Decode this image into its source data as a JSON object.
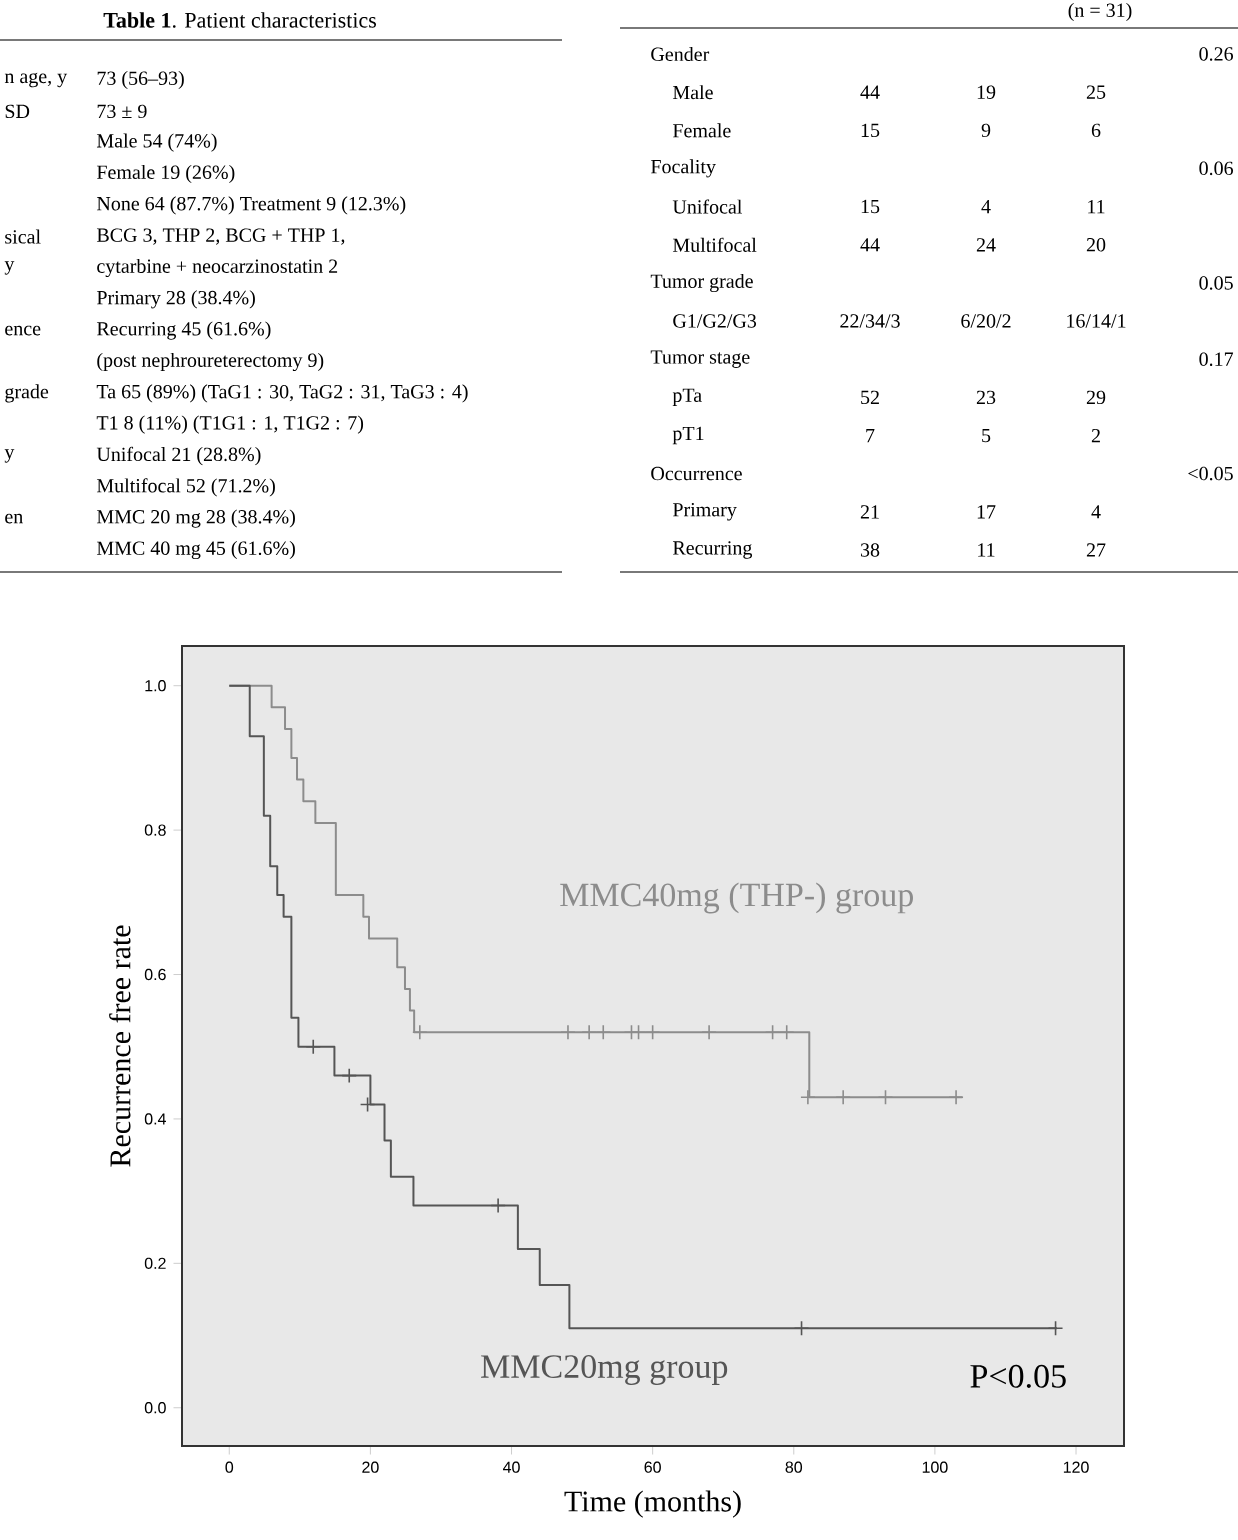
{
  "chart_data": [
    {
      "type": "other",
      "title": "**Table 1**.  Patient characteristics",
      "categories": [
        "n age, y",
        "SD",
        null,
        null,
        null,
        "sical",
        "y",
        null,
        "ence",
        null,
        "grade",
        null,
        "y",
        null,
        "en",
        null
      ],
      "value_labels": [
        "73 (56–93)",
        "73 ± 9",
        "Male 54 (74%)",
        "Female 19 (26%)",
        "None 64 (87.7%)   Treatment 9 (12.3%)",
        "BCG 3, THP 2, BCG + THP 1,",
        "cytarbine + neocarzinostatin 2",
        "Primary 28 (38.4%)",
        "Recurring 45 (61.6%)",
        "(post nephroureterectomy 9)",
        "Ta 65 (89%) (TaG1 : 30, TaG2 : 31, TaG3 : 4)",
        "T1 8 (11%) (T1G1 : 1, T1G2 : 7)",
        "Unifocal 21 (28.8%)",
        "Multifocal 52 (71.2%)",
        "MMC 20 mg 28 (38.4%)",
        "MMC 40 mg 45 (61.6%)"
      ]
    },
    {
      "type": "other",
      "subtitle": "(n = 31)",
      "categories": [
        "Gender",
        "Male",
        "Female",
        "Focality",
        "Unifocal",
        "Multifocal",
        "Tumor grade",
        "G1/G2/G3",
        "Tumor stage",
        "pTa",
        "pT1",
        "Occurrence",
        "Primary",
        "Recurring"
      ],
      "series": [
        {
          "values": [
            null,
            44,
            15,
            null,
            15,
            44,
            null,
            null,
            null,
            52,
            7,
            null,
            21,
            38
          ],
          "value_labels": [
            null,
            "44",
            "15",
            null,
            "15",
            "44",
            null,
            "22/34/3",
            null,
            "52",
            "7",
            null,
            "21",
            "38"
          ]
        },
        {
          "values": [
            null,
            19,
            9,
            null,
            4,
            24,
            null,
            null,
            null,
            23,
            5,
            null,
            17,
            11
          ],
          "value_labels": [
            null,
            "19",
            "9",
            null,
            "4",
            "24",
            null,
            "6/20/2",
            null,
            "23",
            "5",
            null,
            "17",
            "11"
          ]
        },
        {
          "values": [
            null,
            25,
            6,
            null,
            11,
            20,
            null,
            null,
            null,
            29,
            2,
            null,
            4,
            27
          ],
          "value_labels": [
            null,
            "25",
            "6",
            null,
            "11",
            "20",
            null,
            "16/14/1",
            null,
            "29",
            "2",
            null,
            "4",
            "27"
          ]
        },
        {
          "values": [
            0.26,
            null,
            null,
            0.06,
            null,
            null,
            0.05,
            null,
            0.17,
            null,
            null,
            null,
            null,
            null
          ],
          "value_labels": [
            "0.26",
            null,
            null,
            "0.06",
            null,
            null,
            "0.05",
            null,
            "0.17",
            null,
            null,
            "<0.05",
            null,
            null
          ]
        }
      ]
    },
    {
      "type": "step",
      "xlabel": "Time (months)",
      "ylabel": "Recurrence free rate",
      "xlim": [
        -6.7,
        126.8
      ],
      "ylim": [
        -0.053,
        1.055
      ],
      "xticks": [
        0,
        20,
        40,
        60,
        80,
        100,
        120
      ],
      "yticks": [
        {
          "value": 0,
          "label": "0.0"
        },
        {
          "value": 0.2,
          "label": "0.2"
        },
        {
          "value": 0.4,
          "label": "0.4"
        },
        {
          "value": 0.6,
          "label": "0.6"
        },
        {
          "value": 0.8,
          "label": "0.8"
        },
        {
          "value": 1,
          "label": "1.0"
        }
      ],
      "annotations": [
        "P<0.05"
      ],
      "series": [
        {
          "name": "MMC40mg (THP-) group",
          "color": "#8c8c8c",
          "x": [
            0,
            6.0,
            7.9,
            8.8,
            9.6,
            10.5,
            12.2,
            15.1,
            19.0,
            19.8,
            23.8,
            24.9,
            25.6,
            26.2,
            82.2,
            103.9
          ],
          "values": [
            1,
            0.97,
            0.94,
            0.9,
            0.87,
            0.84,
            0.81,
            0.71,
            0.68,
            0.65,
            0.61,
            0.58,
            0.55,
            0.52,
            0.43,
            0.43
          ]
        },
        {
          "name": "MMC20mg group",
          "color": "#555555",
          "x": [
            0,
            2.9,
            4.9,
            5.8,
            6.8,
            7.7,
            8.8,
            9.8,
            14.9,
            20.0,
            22.0,
            22.9,
            26.1,
            40.9,
            44.0,
            48.2,
            117.3
          ],
          "values": [
            1,
            0.93,
            0.82,
            0.75,
            0.71,
            0.68,
            0.54,
            0.5,
            0.46,
            0.42,
            0.37,
            0.32,
            0.28,
            0.22,
            0.17,
            0.11,
            0.11
          ]
        },
        {
          "type": "scatter",
          "marker": "cross",
          "color": "#8c8c8c",
          "x": [
            27,
            48,
            51,
            53,
            57,
            58,
            60,
            68,
            77,
            79,
            82,
            87,
            93,
            103
          ],
          "values": [
            0.52,
            0.52,
            0.52,
            0.52,
            0.52,
            0.52,
            0.52,
            0.52,
            0.52,
            0.52,
            0.43,
            0.43,
            0.43,
            0.43
          ]
        },
        {
          "type": "scatter",
          "marker": "cross",
          "color": "#555555",
          "x": [
            11.9,
            17.0,
            19.6,
            38.1,
            81.1,
            117.1
          ],
          "values": [
            0.5,
            0.46,
            0.42,
            0.28,
            0.11,
            0.11
          ]
        }
      ]
    }
  ]
}
